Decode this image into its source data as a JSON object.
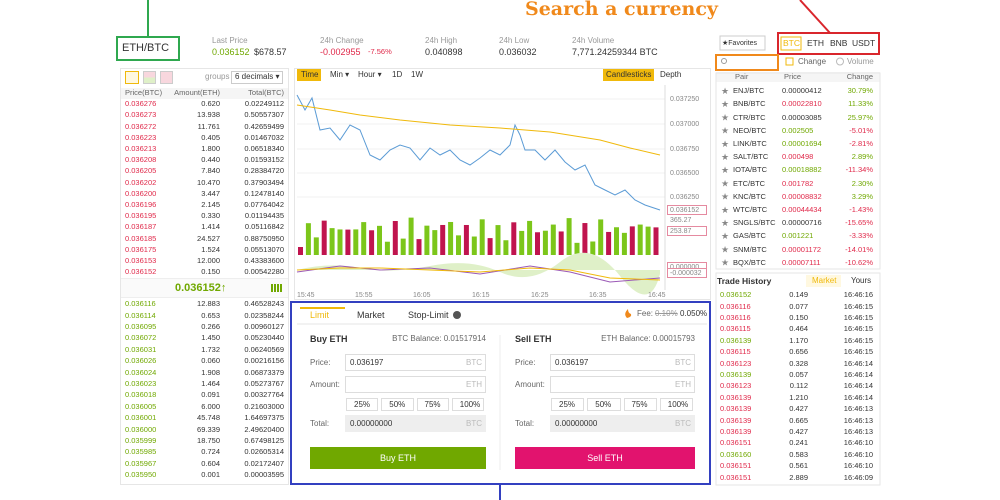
{
  "annotations": {
    "search_label": "Search a currency"
  },
  "header": {
    "pair": "ETH/BTC",
    "stats": [
      {
        "label": "Last Price",
        "value": "0.036152",
        "extra": "$678.57"
      },
      {
        "label": "24h Change",
        "value": "-0.002955",
        "extra": "-7.56%"
      },
      {
        "label": "24h High",
        "value": "0.040898"
      },
      {
        "label": "24h Low",
        "value": "0.036032"
      },
      {
        "label": "24h Volume",
        "value": "7,771.24259344 BTC"
      }
    ]
  },
  "order_book": {
    "groups_label": "groups",
    "decimals": "6 decimals ▾",
    "columns": [
      "Price(BTC)",
      "Amount(ETH)",
      "Total(BTC)"
    ],
    "asks": [
      [
        "0.036276",
        "0.620",
        "0.02249112"
      ],
      [
        "0.036273",
        "13.938",
        "0.50557307"
      ],
      [
        "0.036272",
        "11.761",
        "0.42659499"
      ],
      [
        "0.036223",
        "0.405",
        "0.01467032"
      ],
      [
        "0.036213",
        "1.800",
        "0.06518340"
      ],
      [
        "0.036208",
        "0.440",
        "0.01593152"
      ],
      [
        "0.036205",
        "7.840",
        "0.28384720"
      ],
      [
        "0.036202",
        "10.470",
        "0.37903494"
      ],
      [
        "0.036200",
        "3.447",
        "0.12478140"
      ],
      [
        "0.036196",
        "2.145",
        "0.07764042"
      ],
      [
        "0.036195",
        "0.330",
        "0.01194435"
      ],
      [
        "0.036187",
        "1.414",
        "0.05116842"
      ],
      [
        "0.036185",
        "24.527",
        "0.88750950"
      ],
      [
        "0.036175",
        "1.524",
        "0.05513070"
      ],
      [
        "0.036153",
        "12.000",
        "0.43383600"
      ],
      [
        "0.036152",
        "0.150",
        "0.00542280"
      ]
    ],
    "last_price": "0.036152↑",
    "bids": [
      [
        "0.036116",
        "12.883",
        "0.46528243"
      ],
      [
        "0.036114",
        "0.653",
        "0.02358244"
      ],
      [
        "0.036095",
        "0.266",
        "0.00960127"
      ],
      [
        "0.036072",
        "1.450",
        "0.05230440"
      ],
      [
        "0.036031",
        "1.732",
        "0.06240569"
      ],
      [
        "0.036026",
        "0.060",
        "0.00216156"
      ],
      [
        "0.036024",
        "1.908",
        "0.06873379"
      ],
      [
        "0.036023",
        "1.464",
        "0.05273767"
      ],
      [
        "0.036018",
        "0.091",
        "0.00327764"
      ],
      [
        "0.036005",
        "6.000",
        "0.21603000"
      ],
      [
        "0.036001",
        "45.748",
        "1.64697375"
      ],
      [
        "0.036000",
        "69.339",
        "2.49620400"
      ],
      [
        "0.035999",
        "18.750",
        "0.67498125"
      ],
      [
        "0.035985",
        "0.724",
        "0.02605314"
      ],
      [
        "0.035967",
        "0.604",
        "0.02172407"
      ],
      [
        "0.035950",
        "0.001",
        "0.00003595"
      ]
    ]
  },
  "chart": {
    "tabs": [
      "Time",
      "Min ▾",
      "Hour ▾",
      "1D",
      "1W"
    ],
    "modes": [
      "Candlesticks",
      "Depth"
    ],
    "y_labels": [
      "0.037250",
      "0.037000",
      "0.036750",
      "0.036500",
      "0.036250",
      "0.036152",
      "365.27",
      "253.87",
      "0.000000",
      "-0.000032"
    ],
    "x_labels": [
      "15:45",
      "15:55",
      "16:05",
      "16:15",
      "16:25",
      "16:35",
      "16:45"
    ]
  },
  "order_form": {
    "tabs": [
      "Limit",
      "Market",
      "Stop-Limit"
    ],
    "fee_label": "Fee:",
    "fee_old": "0.10%",
    "fee_new": "0.050%",
    "sides": [
      {
        "title": "Buy ETH",
        "balance": "BTC Balance: 0.01517914",
        "price_label": "Price:",
        "price": "0.036197",
        "price_unit": "BTC",
        "amount_label": "Amount:",
        "amount_unit": "ETH",
        "percents": [
          "25%",
          "50%",
          "75%",
          "100%"
        ],
        "total_label": "Total:",
        "total": "0.00000000",
        "total_unit": "BTC",
        "button": "Buy ETH",
        "color": "#70a800"
      },
      {
        "title": "Sell ETH",
        "balance": "ETH Balance: 0.00015793",
        "price_label": "Price:",
        "price": "0.036197",
        "price_unit": "BTC",
        "amount_label": "Amount:",
        "amount_unit": "ETH",
        "percents": [
          "25%",
          "50%",
          "75%",
          "100%"
        ],
        "total_label": "Total:",
        "total": "0.00000000",
        "total_unit": "BTC",
        "button": "Sell ETH",
        "color": "#e2136e"
      }
    ]
  },
  "markets": {
    "favorites": "★Favorites",
    "quotes": [
      "BTC",
      "ETH",
      "BNB",
      "USDT"
    ],
    "sort_options": [
      "Change",
      "Volume"
    ],
    "columns": [
      "Pair",
      "Price",
      "Change"
    ],
    "rows": [
      [
        "ENJ/BTC",
        "0.00000412",
        "30.79%"
      ],
      [
        "BNB/BTC",
        "0.00022810",
        "11.33%"
      ],
      [
        "CTR/BTC",
        "0.00003085",
        "25.97%"
      ],
      [
        "NEO/BTC",
        "0.002505",
        "-5.01%"
      ],
      [
        "LINK/BTC",
        "0.00001694",
        "-2.81%"
      ],
      [
        "SALT/BTC",
        "0.000498",
        "2.89%"
      ],
      [
        "IOTA/BTC",
        "0.00018882",
        "-11.34%"
      ],
      [
        "ETC/BTC",
        "0.001782",
        "2.30%"
      ],
      [
        "KNC/BTC",
        "0.00008832",
        "3.29%"
      ],
      [
        "WTC/BTC",
        "0.00044434",
        "-1.43%"
      ],
      [
        "SNGLS/BTC",
        "0.00000716",
        "-15.65%"
      ],
      [
        "GAS/BTC",
        "0.001221",
        "-3.33%"
      ],
      [
        "SNM/BTC",
        "0.00001172",
        "-14.01%"
      ],
      [
        "BQX/BTC",
        "0.00007111",
        "-10.62%"
      ]
    ],
    "price_colors": [
      "#333333",
      "#e0294a",
      "#333333",
      "#70a800",
      "#70a800",
      "#e0294a",
      "#70a800",
      "#e0294a",
      "#e0294a",
      "#e0294a",
      "#333333",
      "#70a800",
      "#e0294a",
      "#e0294a"
    ]
  },
  "trade_history": {
    "title": "Trade History",
    "tabs": [
      "Market",
      "Yours"
    ],
    "rows": [
      [
        "0.036152",
        "0.149",
        "16:46:16"
      ],
      [
        "0.036116",
        "0.077",
        "16:46:15"
      ],
      [
        "0.036116",
        "0.150",
        "16:46:15"
      ],
      [
        "0.036115",
        "0.464",
        "16:46:15"
      ],
      [
        "0.036139",
        "1.170",
        "16:46:15"
      ],
      [
        "0.036115",
        "0.656",
        "16:46:15"
      ],
      [
        "0.036123",
        "0.328",
        "16:46:14"
      ],
      [
        "0.036139",
        "0.057",
        "16:46:14"
      ],
      [
        "0.036123",
        "0.112",
        "16:46:14"
      ],
      [
        "0.036139",
        "1.210",
        "16:46:14"
      ],
      [
        "0.036139",
        "0.427",
        "16:46:13"
      ],
      [
        "0.036139",
        "0.665",
        "16:46:13"
      ],
      [
        "0.036139",
        "0.427",
        "16:46:13"
      ],
      [
        "0.036151",
        "0.241",
        "16:46:10"
      ],
      [
        "0.036160",
        "0.583",
        "16:46:10"
      ],
      [
        "0.036151",
        "0.561",
        "16:46:10"
      ],
      [
        "0.036151",
        "2.889",
        "16:46:09"
      ]
    ],
    "price_colors": [
      "#70a800",
      "#e0294a",
      "#e0294a",
      "#e0294a",
      "#70a800",
      "#e0294a",
      "#e0294a",
      "#70a800",
      "#e0294a",
      "#e0294a",
      "#e0294a",
      "#e0294a",
      "#e0294a",
      "#e0294a",
      "#70a800",
      "#e0294a",
      "#e0294a"
    ]
  }
}
